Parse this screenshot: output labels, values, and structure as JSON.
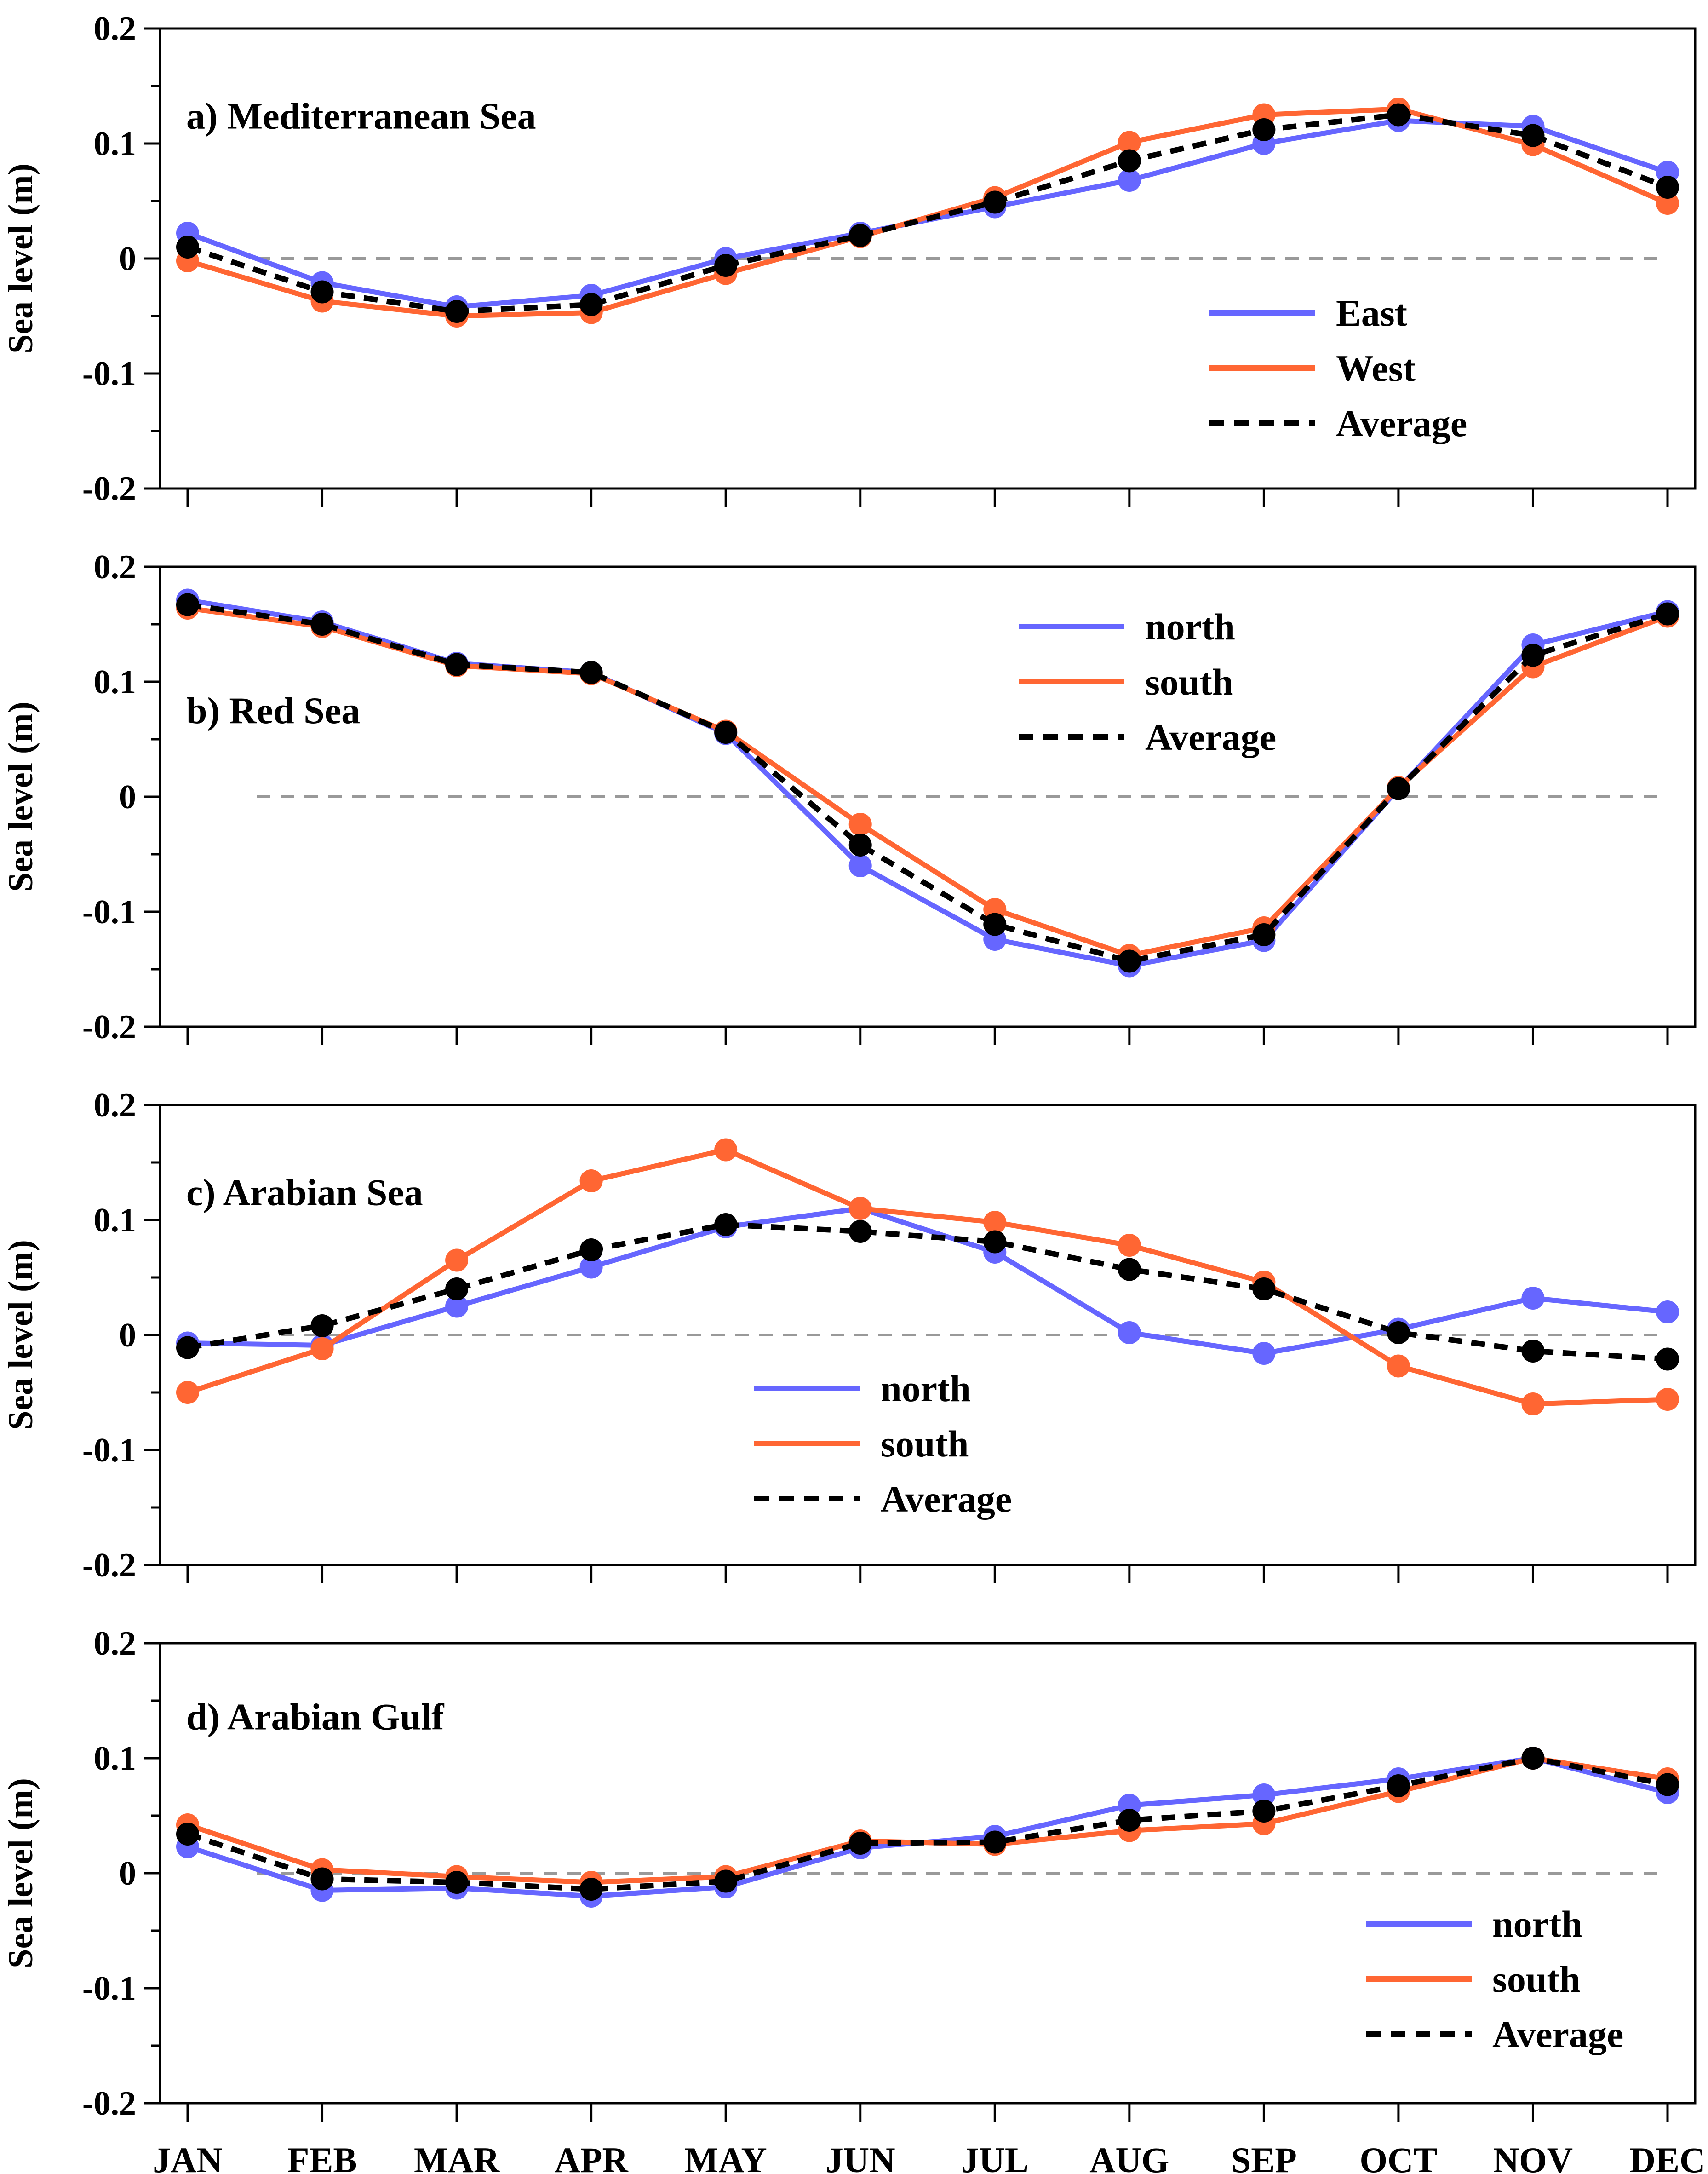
{
  "chart_data": [
    {
      "type": "line",
      "title": "a) Mediterranean Sea",
      "ylabel": "Sea level (m)",
      "xlabel": "",
      "ylim": [
        -0.2,
        0.2
      ],
      "yticks": [
        0.2,
        0.1,
        0,
        -0.1,
        -0.2
      ],
      "ytick_labels": [
        "0.2",
        "0.1",
        "0",
        "-0.1",
        "-0.2"
      ],
      "grid": false,
      "zero_line": true,
      "legend_position": "lower-right",
      "categories": [
        "JAN",
        "FEB",
        "MAR",
        "APR",
        "MAY",
        "JUN",
        "JUL",
        "AUG",
        "SEP",
        "OCT",
        "NOV",
        "DEC"
      ],
      "series": [
        {
          "name": "East",
          "color": "#6666ff",
          "style": "solid",
          "values": [
            0.022,
            -0.021,
            -0.042,
            -0.032,
            0.0,
            0.022,
            0.045,
            0.068,
            0.1,
            0.12,
            0.115,
            0.075
          ]
        },
        {
          "name": "West",
          "color": "#ff6633",
          "style": "solid",
          "values": [
            -0.002,
            -0.037,
            -0.05,
            -0.047,
            -0.013,
            0.019,
            0.053,
            0.101,
            0.125,
            0.13,
            0.099,
            0.048
          ]
        },
        {
          "name": "Average",
          "color": "#000000",
          "style": "dashed",
          "values": [
            0.01,
            -0.029,
            -0.046,
            -0.04,
            -0.006,
            0.02,
            0.049,
            0.085,
            0.112,
            0.125,
            0.107,
            0.062
          ]
        }
      ]
    },
    {
      "type": "line",
      "title": "b) Red Sea",
      "ylabel": "Sea level (m)",
      "xlabel": "",
      "ylim": [
        -0.2,
        0.2
      ],
      "yticks": [
        0.2,
        0.1,
        0,
        -0.1,
        -0.2
      ],
      "ytick_labels": [
        "0.2",
        "0.1",
        "0",
        "-0.1",
        "-0.2"
      ],
      "grid": false,
      "zero_line": true,
      "legend_position": "upper-center",
      "categories": [
        "JAN",
        "FEB",
        "MAR",
        "APR",
        "MAY",
        "JUN",
        "JUL",
        "AUG",
        "SEP",
        "OCT",
        "NOV",
        "DEC"
      ],
      "series": [
        {
          "name": "north",
          "color": "#6666ff",
          "style": "solid",
          "values": [
            0.171,
            0.152,
            0.116,
            0.108,
            0.055,
            -0.06,
            -0.124,
            -0.147,
            -0.125,
            0.007,
            0.132,
            0.161
          ]
        },
        {
          "name": "south",
          "color": "#ff6633",
          "style": "solid",
          "values": [
            0.164,
            0.148,
            0.114,
            0.107,
            0.057,
            -0.024,
            -0.098,
            -0.138,
            -0.114,
            0.008,
            0.113,
            0.157
          ]
        },
        {
          "name": "Average",
          "color": "#000000",
          "style": "dashed",
          "values": [
            0.167,
            0.15,
            0.115,
            0.108,
            0.056,
            -0.042,
            -0.111,
            -0.143,
            -0.12,
            0.007,
            0.123,
            0.159
          ]
        }
      ]
    },
    {
      "type": "line",
      "title": "c) Arabian Sea",
      "ylabel": "Sea level (m)",
      "xlabel": "",
      "ylim": [
        -0.2,
        0.2
      ],
      "yticks": [
        0.2,
        0.1,
        0,
        -0.1,
        -0.2
      ],
      "ytick_labels": [
        "0.2",
        "0.1",
        "0",
        "-0.1",
        "-0.2"
      ],
      "grid": false,
      "zero_line": true,
      "legend_position": "lower-center",
      "categories": [
        "JAN",
        "FEB",
        "MAR",
        "APR",
        "MAY",
        "JUN",
        "JUL",
        "AUG",
        "SEP",
        "OCT",
        "NOV",
        "DEC"
      ],
      "series": [
        {
          "name": "north",
          "color": "#6666ff",
          "style": "solid",
          "values": [
            -0.007,
            -0.009,
            0.025,
            0.059,
            0.094,
            0.11,
            0.072,
            0.002,
            -0.016,
            0.005,
            0.032,
            0.02
          ]
        },
        {
          "name": "south",
          "color": "#ff6633",
          "style": "solid",
          "values": [
            -0.05,
            -0.012,
            0.065,
            0.134,
            0.161,
            0.11,
            0.098,
            0.078,
            0.046,
            -0.027,
            -0.06,
            -0.056
          ]
        },
        {
          "name": "Average",
          "color": "#000000",
          "style": "dashed",
          "values": [
            -0.011,
            0.008,
            0.04,
            0.074,
            0.096,
            0.09,
            0.081,
            0.057,
            0.04,
            0.002,
            -0.014,
            -0.021
          ]
        }
      ]
    },
    {
      "type": "line",
      "title": "d) Arabian Gulf",
      "ylabel": "Sea level (m)",
      "xlabel": "",
      "ylim": [
        -0.2,
        0.2
      ],
      "yticks": [
        0.2,
        0.1,
        0,
        -0.1,
        -0.2
      ],
      "ytick_labels": [
        "0.2",
        "0.1",
        "0",
        "-0.1",
        "-0.2"
      ],
      "grid": false,
      "zero_line": true,
      "legend_position": "lower-right",
      "categories": [
        "JAN",
        "FEB",
        "MAR",
        "APR",
        "MAY",
        "JUN",
        "JUL",
        "AUG",
        "SEP",
        "OCT",
        "NOV",
        "DEC"
      ],
      "series": [
        {
          "name": "north",
          "color": "#6666ff",
          "style": "solid",
          "values": [
            0.023,
            -0.015,
            -0.013,
            -0.02,
            -0.012,
            0.022,
            0.032,
            0.059,
            0.068,
            0.082,
            0.1,
            0.07
          ]
        },
        {
          "name": "south",
          "color": "#ff6633",
          "style": "solid",
          "values": [
            0.042,
            0.003,
            -0.003,
            -0.008,
            -0.003,
            0.028,
            0.025,
            0.037,
            0.043,
            0.071,
            0.1,
            0.082
          ]
        },
        {
          "name": "Average",
          "color": "#000000",
          "style": "dashed",
          "values": [
            0.034,
            -0.005,
            -0.008,
            -0.014,
            -0.007,
            0.026,
            0.027,
            0.046,
            0.054,
            0.076,
            0.1,
            0.077
          ]
        }
      ]
    }
  ]
}
